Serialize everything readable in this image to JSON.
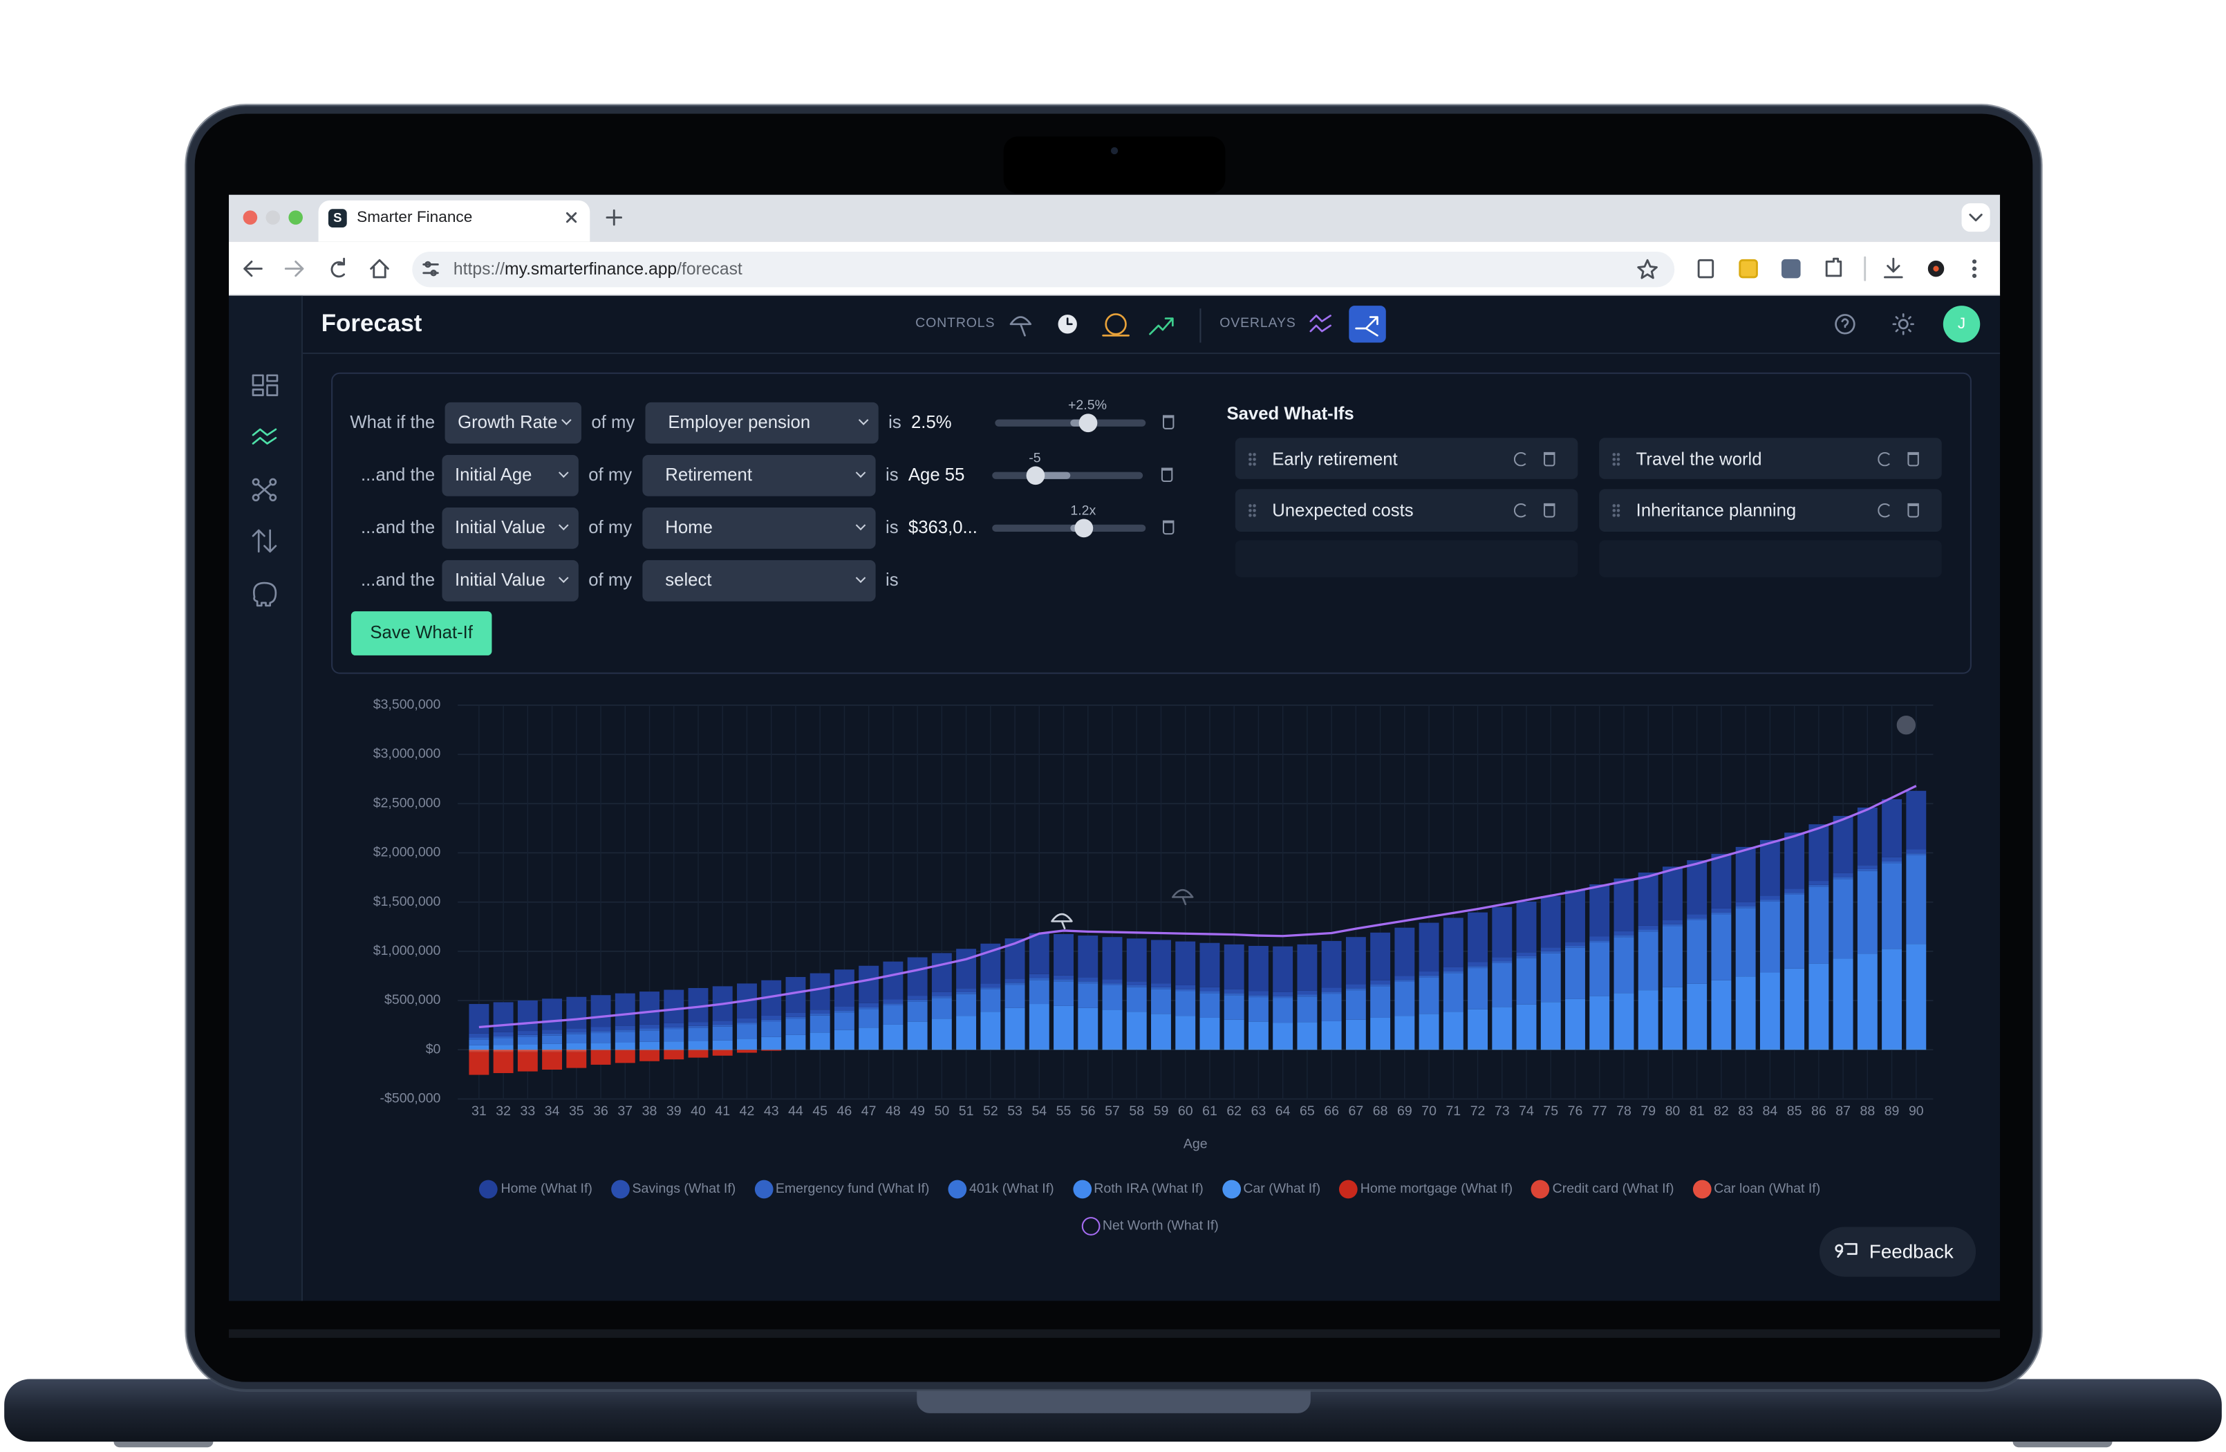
{
  "browser": {
    "favicon": "S",
    "tab_title": "Smarter Finance",
    "url_scheme": "https://",
    "url_host": "my.smarterfinance.app",
    "url_path": "/forecast"
  },
  "header": {
    "title": "Forecast",
    "controls_label": "CONTROLS",
    "overlays_label": "OVERLAYS",
    "avatar": "J"
  },
  "what_if": {
    "rows": [
      {
        "lead": "What if the",
        "field": "Growth Rate",
        "of": "of my",
        "target": "Employer pension",
        "is": "is",
        "value": "2.5%",
        "slider_label": "+2.5%"
      },
      {
        "lead": "...and the",
        "field": "Initial Age",
        "of": "of my",
        "target": "Retirement",
        "is": "is",
        "value": "Age 55",
        "slider_label": "-5"
      },
      {
        "lead": "...and the",
        "field": "Initial Value",
        "of": "of my",
        "target": "Home",
        "is": "is",
        "value": "$363,0...",
        "slider_label": "1.2x"
      },
      {
        "lead": "...and the",
        "field": "Initial Value",
        "of": "of my",
        "target": "select",
        "is": "is"
      }
    ],
    "save_button": "Save What-If"
  },
  "saved": {
    "title": "Saved What-Ifs",
    "items": [
      "Early retirement",
      "Travel the world",
      "Unexpected costs",
      "Inheritance planning"
    ]
  },
  "chart_data": {
    "type": "bar",
    "stacked": true,
    "x_label": "Age",
    "grid": true,
    "categories": [
      "31",
      "32",
      "33",
      "34",
      "35",
      "36",
      "37",
      "38",
      "39",
      "40",
      "41",
      "42",
      "43",
      "44",
      "45",
      "46",
      "47",
      "48",
      "49",
      "50",
      "51",
      "52",
      "53",
      "54",
      "55",
      "56",
      "57",
      "58",
      "59",
      "60",
      "61",
      "62",
      "63",
      "64",
      "65",
      "66",
      "67",
      "68",
      "69",
      "70",
      "71",
      "72",
      "73",
      "74",
      "75",
      "76",
      "77",
      "78",
      "79",
      "80",
      "81",
      "82",
      "83",
      "84",
      "85",
      "86",
      "87",
      "88",
      "89",
      "90"
    ],
    "ylim": [
      -500000,
      3500000
    ],
    "yticks": [
      {
        "value": -500000,
        "label": "-$500,000"
      },
      {
        "value": 0,
        "label": "$0"
      },
      {
        "value": 500000,
        "label": "$500,000"
      },
      {
        "value": 1000000,
        "label": "$1,000,000"
      },
      {
        "value": 1500000,
        "label": "$1,500,000"
      },
      {
        "value": 2000000,
        "label": "$2,000,000"
      },
      {
        "value": 2500000,
        "label": "$2,500,000"
      },
      {
        "value": 3000000,
        "label": "$3,000,000"
      },
      {
        "value": 3500000,
        "label": "$3,500,000"
      }
    ],
    "series": [
      {
        "name": "Home (What If)",
        "color": "#22409a",
        "values": [
          300000,
          305000,
          310000,
          315000,
          320000,
          325000,
          330000,
          335000,
          340000,
          345000,
          350000,
          355000,
          360000,
          365000,
          370000,
          375000,
          380000,
          385000,
          390000,
          395000,
          400000,
          405000,
          410000,
          415000,
          420000,
          425000,
          430000,
          435000,
          440000,
          445000,
          450000,
          455000,
          460000,
          465000,
          470000,
          475000,
          480000,
          485000,
          490000,
          495000,
          500000,
          505000,
          510000,
          515000,
          520000,
          525000,
          530000,
          535000,
          540000,
          545000,
          550000,
          555000,
          560000,
          565000,
          570000,
          575000,
          580000,
          585000,
          590000,
          595000
        ]
      },
      {
        "name": "Savings (What If)",
        "color": "#2a4fb0",
        "values": [
          40000,
          40000,
          40000,
          40000,
          40000,
          40000,
          40000,
          40000,
          40000,
          40000,
          40000,
          40000,
          40000,
          40000,
          40000,
          40000,
          40000,
          40000,
          40000,
          40000,
          40000,
          40000,
          40000,
          40000,
          40000,
          40000,
          40000,
          40000,
          40000,
          40000,
          40000,
          40000,
          40000,
          40000,
          40000,
          40000,
          40000,
          40000,
          40000,
          40000,
          40000,
          40000,
          40000,
          40000,
          40000,
          40000,
          40000,
          40000,
          40000,
          40000,
          40000,
          40000,
          40000,
          40000,
          40000,
          40000,
          40000,
          40000,
          40000,
          40000
        ]
      },
      {
        "name": "Emergency fund (What If)",
        "color": "#3263c6",
        "values": [
          20000,
          20000,
          20000,
          20000,
          20000,
          20000,
          20000,
          20000,
          20000,
          20000,
          20000,
          20000,
          20000,
          20000,
          20000,
          20000,
          20000,
          20000,
          20000,
          20000,
          20000,
          20000,
          20000,
          20000,
          20000,
          20000,
          20000,
          20000,
          20000,
          20000,
          20000,
          20000,
          20000,
          20000,
          20000,
          20000,
          20000,
          20000,
          20000,
          20000,
          20000,
          20000,
          20000,
          20000,
          20000,
          20000,
          20000,
          20000,
          20000,
          20000,
          20000,
          20000,
          20000,
          20000,
          20000,
          20000,
          20000,
          20000,
          20000,
          20000
        ]
      },
      {
        "name": "401k (What If)",
        "color": "#3873d8",
        "values": [
          60000,
          68000,
          76000,
          84000,
          92000,
          100000,
          108000,
          116000,
          124000,
          132000,
          140000,
          148000,
          156000,
          164000,
          172000,
          180000,
          188000,
          196000,
          204000,
          212000,
          220000,
          228000,
          236000,
          244000,
          250000,
          250000,
          250000,
          250000,
          250000,
          250000,
          250000,
          250000,
          250000,
          250000,
          260000,
          280000,
          300000,
          320000,
          345000,
          370000,
          395000,
          420000,
          445000,
          470000,
          495000,
          520000,
          545000,
          570000,
          595000,
          620000,
          645000,
          670000,
          695000,
          720000,
          750000,
          780000,
          810000,
          840000,
          870000,
          900000
        ]
      },
      {
        "name": "Roth IRA (What If)",
        "color": "#4289ee",
        "values": [
          30000,
          35000,
          40000,
          45000,
          50000,
          55000,
          60000,
          65000,
          70000,
          75000,
          80000,
          95000,
          115000,
          135000,
          160000,
          185000,
          210000,
          240000,
          270000,
          300000,
          330000,
          370000,
          410000,
          450000,
          430000,
          410000,
          390000,
          370000,
          350000,
          330000,
          310000,
          290000,
          270000,
          260000,
          265000,
          275000,
          290000,
          310000,
          330000,
          350000,
          370000,
          395000,
          420000,
          445000,
          470000,
          500000,
          530000,
          560000,
          590000,
          620000,
          655000,
          690000,
          730000,
          770000,
          810000,
          860000,
          910000,
          960000,
          1010000,
          1060000
        ]
      },
      {
        "name": "Car (What If)",
        "color": "#4a94f2",
        "values": [
          15000,
          15000,
          15000,
          15000,
          15000,
          15000,
          15000,
          15000,
          15000,
          15000,
          15000,
          15000,
          15000,
          15000,
          15000,
          15000,
          15000,
          15000,
          15000,
          15000,
          15000,
          15000,
          15000,
          15000,
          15000,
          15000,
          15000,
          15000,
          15000,
          15000,
          15000,
          15000,
          15000,
          15000,
          15000,
          15000,
          15000,
          15000,
          15000,
          15000,
          15000,
          15000,
          15000,
          15000,
          15000,
          15000,
          15000,
          15000,
          15000,
          15000,
          15000,
          15000,
          15000,
          15000,
          15000,
          15000,
          15000,
          15000,
          15000,
          15000
        ]
      },
      {
        "name": "Home mortgage (What If)",
        "color": "#c9291c",
        "values": [
          -230000,
          -212000,
          -195000,
          -177000,
          -160000,
          -142000,
          -124000,
          -106000,
          -88000,
          -70000,
          -50000,
          -30000,
          -10000,
          0,
          0,
          0,
          0,
          0,
          0,
          0,
          0,
          0,
          0,
          0,
          0,
          0,
          0,
          0,
          0,
          0,
          0,
          0,
          0,
          0,
          0,
          0,
          0,
          0,
          0,
          0,
          0,
          0,
          0,
          0,
          0,
          0,
          0,
          0,
          0,
          0,
          0,
          0,
          0,
          0,
          0,
          0,
          0,
          0,
          0,
          0
        ]
      },
      {
        "name": "Credit card (What If)",
        "color": "#dc4536",
        "values": [
          -10000,
          -10000,
          -10000,
          -10000,
          -10000,
          -10000,
          -10000,
          -10000,
          -10000,
          -10000,
          -10000,
          0,
          0,
          0,
          0,
          0,
          0,
          0,
          0,
          0,
          0,
          0,
          0,
          0,
          0,
          0,
          0,
          0,
          0,
          0,
          0,
          0,
          0,
          0,
          0,
          0,
          0,
          0,
          0,
          0,
          0,
          0,
          0,
          0,
          0,
          0,
          0,
          0,
          0,
          0,
          0,
          0,
          0,
          0,
          0,
          0,
          0,
          0,
          0,
          0
        ]
      },
      {
        "name": "Car loan (What If)",
        "color": "#e5503f",
        "values": [
          -15000,
          -15000,
          -15000,
          -15000,
          -15000,
          0,
          0,
          0,
          0,
          0,
          0,
          0,
          0,
          0,
          0,
          0,
          0,
          0,
          0,
          0,
          0,
          0,
          0,
          0,
          0,
          0,
          0,
          0,
          0,
          0,
          0,
          0,
          0,
          0,
          0,
          0,
          0,
          0,
          0,
          0,
          0,
          0,
          0,
          0,
          0,
          0,
          0,
          0,
          0,
          0,
          0,
          0,
          0,
          0,
          0,
          0,
          0,
          0,
          0,
          0
        ]
      },
      {
        "name": "Net Worth (What If)",
        "type": "line",
        "color": "#a56cf2",
        "values": [
          230000,
          250000,
          270000,
          290000,
          310000,
          335000,
          360000,
          385000,
          410000,
          435000,
          465000,
          500000,
          540000,
          580000,
          620000,
          665000,
          710000,
          760000,
          810000,
          865000,
          920000,
          1000000,
          1080000,
          1180000,
          1210000,
          1200000,
          1195000,
          1190000,
          1185000,
          1180000,
          1175000,
          1170000,
          1160000,
          1155000,
          1170000,
          1185000,
          1230000,
          1270000,
          1310000,
          1350000,
          1390000,
          1430000,
          1475000,
          1520000,
          1565000,
          1610000,
          1660000,
          1710000,
          1760000,
          1830000,
          1890000,
          1960000,
          2030000,
          2100000,
          2170000,
          2250000,
          2340000,
          2440000,
          2560000,
          2680000
        ]
      }
    ]
  },
  "feedback": "Feedback"
}
